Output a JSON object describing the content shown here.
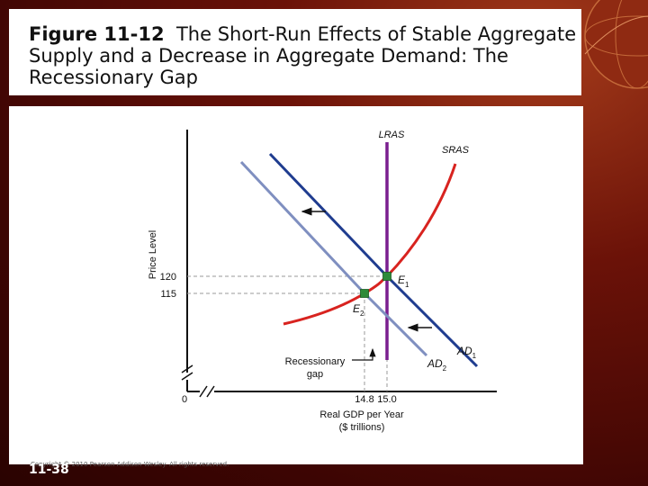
{
  "slide": {
    "figure_number": "Figure 11-12",
    "figure_title": "The Short-Run Effects of Stable Aggregate Supply and a Decrease in Aggregate Demand: The Recessionary Gap",
    "copyright": "Copyright © 2010 Pearson Addison-Wesley. All rights reserved.",
    "slide_number": "11-38"
  },
  "chart_data": {
    "type": "line",
    "title": "",
    "xlabel": "Real GDP per Year",
    "xlabel_units": "($ trillions)",
    "ylabel": "Price Level",
    "x_ticks": [
      "14.8",
      "15.0"
    ],
    "y_ticks": [
      "120",
      "115"
    ],
    "origin_label": "0",
    "axis_breaks": true,
    "grid": false,
    "curve_labels": {
      "lras": "LRAS",
      "sras": "SRAS",
      "ad1_main": "AD",
      "ad1_sub": "1",
      "ad2_main": "AD",
      "ad2_sub": "2"
    },
    "points": [
      {
        "main": "E",
        "sub": "1",
        "x": 15.0,
        "y": 120,
        "color": "#2e8b3a"
      },
      {
        "main": "E",
        "sub": "2",
        "x": 14.8,
        "y": 115,
        "color": "#2e8b3a"
      }
    ],
    "annotation": {
      "line1": "Recessionary",
      "line2": "gap"
    },
    "colors": {
      "lras": "#7a1e8f",
      "sras": "#d8231f",
      "ad1": "#1f3c8f",
      "ad2": "#7f8fc0",
      "guides": "#9a9a9a",
      "points": "#2e8b3a"
    }
  }
}
